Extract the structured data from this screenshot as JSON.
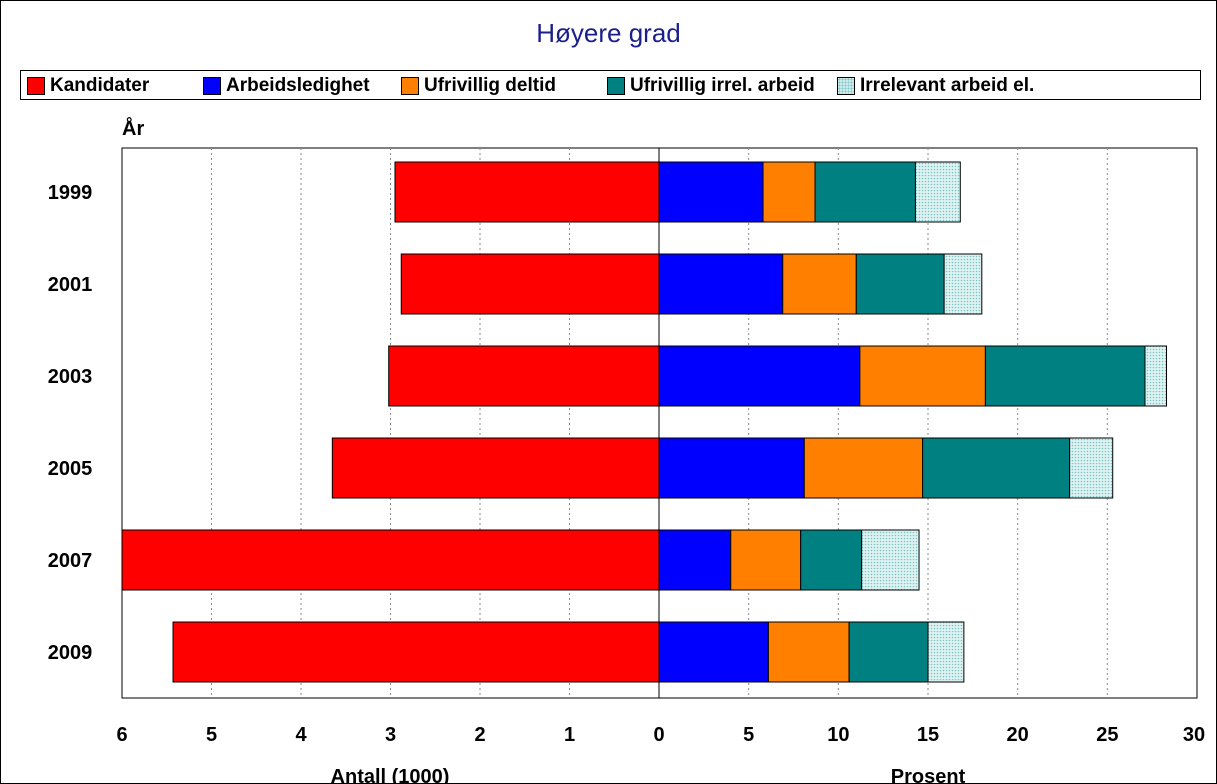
{
  "chart_data": {
    "type": "bar",
    "title": "Høyere grad",
    "y_axis_title": "År",
    "categories": [
      "1999",
      "2001",
      "2003",
      "2005",
      "2007",
      "2009"
    ],
    "left_panel": {
      "xlabel": "Antall (1000)",
      "xlim": [
        6,
        0
      ],
      "ticks": [
        "6",
        "5",
        "4",
        "3",
        "2",
        "1",
        "0"
      ],
      "series": [
        {
          "name": "Kandidater",
          "color": "#ff0000",
          "values": [
            2.95,
            2.88,
            3.02,
            3.65,
            6.0,
            5.43
          ]
        }
      ]
    },
    "right_panel": {
      "xlabel": "Prosent",
      "xlim": [
        0,
        30
      ],
      "ticks": [
        "0",
        "5",
        "10",
        "15",
        "20",
        "25",
        "30"
      ],
      "stacked": true,
      "series": [
        {
          "name": "Arbeidsledighet",
          "color": "#0000ff",
          "values": [
            5.8,
            6.9,
            11.2,
            8.1,
            4.0,
            6.1
          ]
        },
        {
          "name": "Ufrivillig deltid",
          "color": "#ff8000",
          "values": [
            2.9,
            4.1,
            7.0,
            6.6,
            3.9,
            4.5
          ]
        },
        {
          "name": "Ufrivillig irrel. arbeid",
          "color": "#008080",
          "values": [
            5.6,
            4.9,
            8.9,
            8.2,
            3.4,
            4.4
          ]
        },
        {
          "name": "Irrelevant arbeid el.",
          "color": "#dff3f3",
          "pattern": "dots",
          "values": [
            2.5,
            2.1,
            1.2,
            2.4,
            3.2,
            2.0
          ]
        }
      ]
    },
    "grid": true
  }
}
